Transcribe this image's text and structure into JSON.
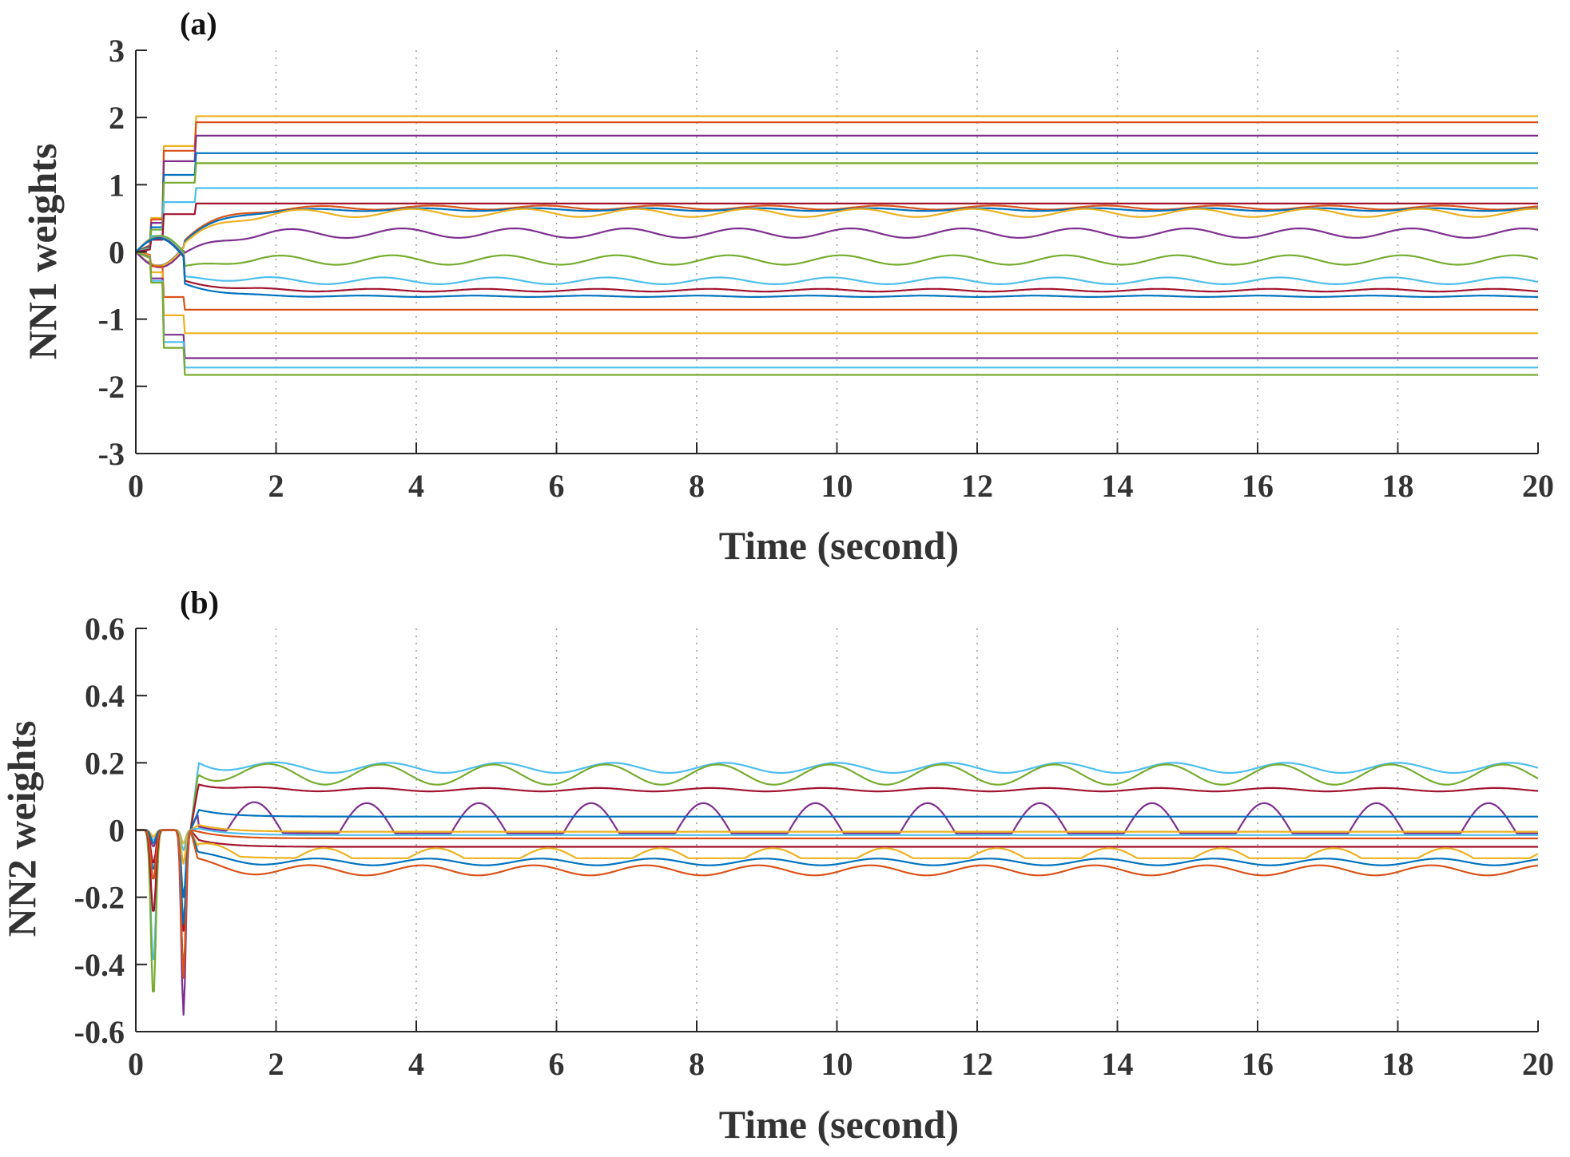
{
  "colors": {
    "palette": [
      "#0072BD",
      "#D95319",
      "#EDB120",
      "#7E2F8E",
      "#77AC30",
      "#4DBEEE",
      "#A2142F"
    ],
    "axis": "#262626",
    "text": "#333333"
  },
  "chart_data": [
    {
      "id": "a",
      "type": "line",
      "panel_label": "(a)",
      "xlabel": "Time (second)",
      "ylabel": "NN1 weights",
      "xlim": [
        0,
        20
      ],
      "ylim": [
        -3,
        3
      ],
      "xticks": [
        0,
        2,
        4,
        6,
        8,
        10,
        12,
        14,
        16,
        18,
        20
      ],
      "yticks": [
        -3,
        -2,
        -1,
        0,
        1,
        2,
        3
      ],
      "xtick_labels": [
        "0",
        "2",
        "4",
        "6",
        "8",
        "10",
        "12",
        "14",
        "16",
        "18",
        "20"
      ],
      "ytick_labels": [
        "-3",
        "-2",
        "-1",
        "0",
        "1",
        "2",
        "3"
      ],
      "grid": true,
      "series": [
        {
          "final": 2.02,
          "osc": 0,
          "transient": "step",
          "color": 2
        },
        {
          "final": 1.93,
          "osc": 0,
          "transient": "step",
          "color": 1
        },
        {
          "final": 1.73,
          "osc": 0,
          "transient": "step",
          "color": 3
        },
        {
          "final": 1.47,
          "osc": 0,
          "transient": "step",
          "color": 0
        },
        {
          "final": 1.32,
          "osc": 0,
          "transient": "step",
          "color": 4
        },
        {
          "final": 0.95,
          "osc": 0,
          "transient": "step",
          "color": 5
        },
        {
          "final": 0.72,
          "osc": 0,
          "transient": "step",
          "color": 6
        },
        {
          "final": 0.66,
          "osc": 0.03,
          "transient": "smooth",
          "color": 1
        },
        {
          "final": 0.63,
          "osc": 0.02,
          "transient": "smooth",
          "color": 0
        },
        {
          "final": 0.58,
          "osc": 0.06,
          "transient": "smooth",
          "color": 2
        },
        {
          "final": 0.28,
          "osc": 0.07,
          "transient": "smooth",
          "color": 3
        },
        {
          "final": -0.12,
          "osc": 0.07,
          "transient": "smooth",
          "color": 4
        },
        {
          "final": -0.43,
          "osc": 0.05,
          "transient": "smooth",
          "color": 5
        },
        {
          "final": -0.57,
          "osc": 0.02,
          "transient": "smooth",
          "color": 6
        },
        {
          "final": -0.66,
          "osc": 0.01,
          "transient": "smooth",
          "color": 0
        },
        {
          "final": -0.86,
          "osc": 0,
          "transient": "step",
          "color": 1
        },
        {
          "final": -1.21,
          "osc": 0,
          "transient": "step",
          "color": 2
        },
        {
          "final": -1.58,
          "osc": 0,
          "transient": "step",
          "color": 3
        },
        {
          "final": -1.72,
          "osc": 0,
          "transient": "step",
          "color": 5
        },
        {
          "final": -1.83,
          "osc": 0,
          "transient": "step",
          "color": 4
        }
      ]
    },
    {
      "id": "b",
      "type": "line",
      "panel_label": "(b)",
      "xlabel": "Time (second)",
      "ylabel": "NN2 weights",
      "xlim": [
        0,
        20
      ],
      "ylim": [
        -0.6,
        0.6
      ],
      "xticks": [
        0,
        2,
        4,
        6,
        8,
        10,
        12,
        14,
        16,
        18,
        20
      ],
      "yticks": [
        -0.6,
        -0.4,
        -0.2,
        0,
        0.2,
        0.4,
        0.6
      ],
      "xtick_labels": [
        "0",
        "2",
        "4",
        "6",
        "8",
        "10",
        "12",
        "14",
        "16",
        "18",
        "20"
      ],
      "ytick_labels": [
        "-0.6",
        "-0.4",
        "-0.2",
        "0",
        "0.2",
        "0.4",
        "0.6"
      ],
      "grid": true,
      "series": [
        {
          "final": 0.185,
          "osc": 0.015,
          "dip1": -0.4,
          "dip2": -0.27,
          "shape": "sine",
          "color": 5
        },
        {
          "final": 0.165,
          "osc": 0.03,
          "dip1": -0.5,
          "dip2": -0.42,
          "shape": "sine",
          "color": 4
        },
        {
          "final": 0.12,
          "osc": 0.005,
          "dip1": -0.25,
          "dip2": -0.44,
          "shape": "sine",
          "color": 6
        },
        {
          "final": 0.035,
          "osc": 0.045,
          "dip1": -0.05,
          "dip2": -0.55,
          "shape": "bump",
          "color": 3
        },
        {
          "final": 0.04,
          "osc": 0,
          "dip1": -0.12,
          "dip2": -0.2,
          "shape": "flat",
          "color": 0
        },
        {
          "final": -0.005,
          "osc": 0,
          "dip1": -0.02,
          "dip2": -0.04,
          "shape": "flat",
          "color": 2
        },
        {
          "final": -0.015,
          "osc": 0,
          "dip1": -0.03,
          "dip2": -0.06,
          "shape": "flat",
          "color": 5
        },
        {
          "final": -0.025,
          "osc": 0,
          "dip1": -0.04,
          "dip2": -0.1,
          "shape": "flat",
          "color": 1
        },
        {
          "final": -0.05,
          "osc": 0,
          "dip1": -0.1,
          "dip2": -0.3,
          "shape": "flat",
          "color": 6
        },
        {
          "final": -0.075,
          "osc": 0.03,
          "dip1": -0.02,
          "dip2": -0.1,
          "shape": "bumpdown",
          "color": 2
        },
        {
          "final": -0.095,
          "osc": 0.01,
          "dip1": -0.04,
          "dip2": -0.28,
          "shape": "sine",
          "color": 0
        },
        {
          "final": -0.12,
          "osc": 0.015,
          "dip1": -0.15,
          "dip2": -0.44,
          "shape": "sine",
          "color": 1
        }
      ]
    }
  ]
}
